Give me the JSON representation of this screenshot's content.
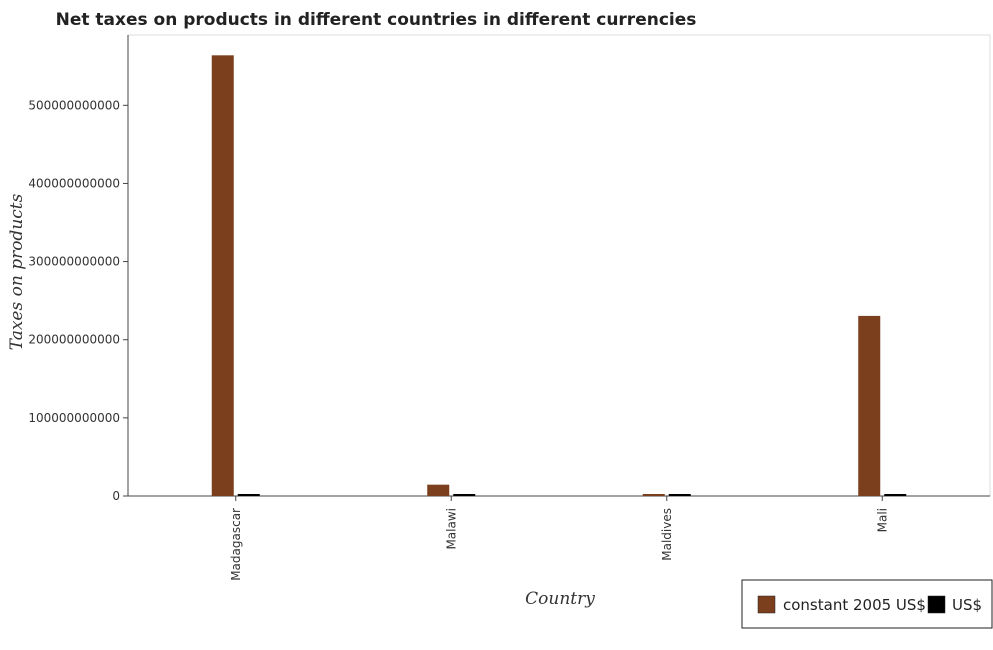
{
  "chart_data": {
    "type": "bar",
    "title": "Net taxes on products in different countries in different currencies",
    "xlabel": "Country",
    "ylabel": "Taxes on products",
    "categories": [
      "Madagascar",
      "Malawi",
      "Maldives",
      "Mali"
    ],
    "series": [
      {
        "name": "constant 2005 US$",
        "color": "#7b3f1e",
        "values": [
          564000000000,
          14500000000,
          1100000000,
          230500000000
        ]
      },
      {
        "name": "US$",
        "color": "#000000",
        "values": [
          250000000,
          20000000,
          10000000,
          400000000
        ]
      }
    ],
    "ylim": [
      0,
      590000000000
    ],
    "yticks": [
      0,
      100000000000,
      200000000000,
      300000000000,
      400000000000,
      500000000000
    ],
    "ytick_labels": [
      "0",
      "100000000000",
      "200000000000",
      "300000000000",
      "400000000000",
      "500000000000"
    ],
    "grid": false,
    "legend_position": "bottom-right"
  }
}
